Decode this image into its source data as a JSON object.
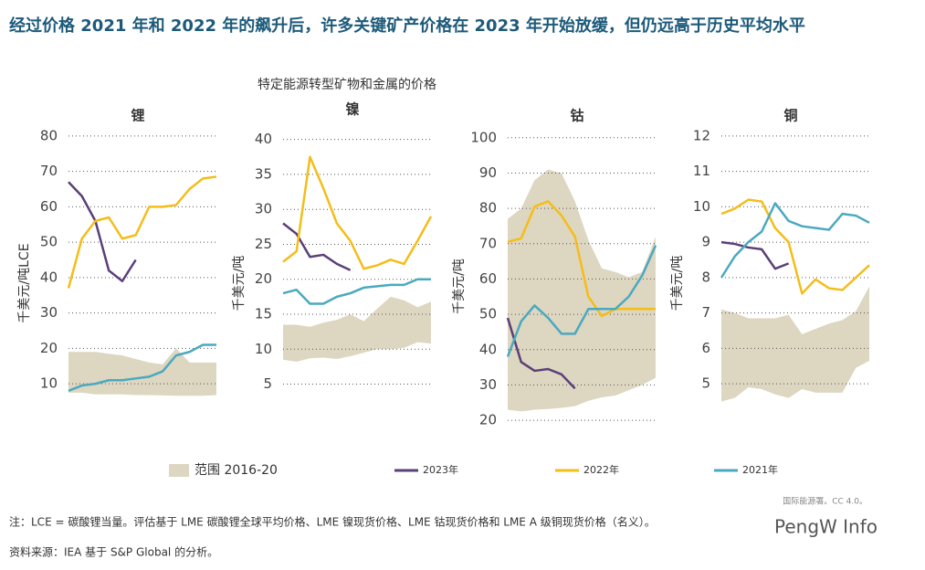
{
  "title": "经过价格 2021 年和 2022 年的飙升后，许多关键矿产价格在 2023 年开始放缓，但仍远高于历史平均水平",
  "subtitle": "特定能源转型矿物和金属的价格",
  "legend": [
    {
      "name": "范围 2016-20",
      "color": "#ddd6c1"
    },
    {
      "name": "2023年",
      "color": "#5b3f78"
    },
    {
      "name": "2022年",
      "color": "#f4bd1a"
    },
    {
      "name": "2021年",
      "color": "#4aa9bf"
    }
  ],
  "credit": "国际能源署。CC 4.0。",
  "note": "注：LCE = 碳酸锂当量。评估基于 LME 碳酸锂全球平均价格、LME 镍现货价格、LME 钴现货价格和 LME A 级铜现货价格（名义）。",
  "source": "资料来源：IEA 基于 S&P Global 的分析。",
  "watermark": "PengW Info",
  "chart_data": [
    {
      "type": "line",
      "title": "锂",
      "ylabel": "千美元/吨LCE",
      "categories": [
        null,
        null,
        null,
        null,
        null,
        null,
        null,
        null,
        null,
        null,
        null,
        null
      ],
      "ylim": [
        1,
        81
      ],
      "yticks": [
        10,
        20,
        30,
        40,
        50,
        60,
        70,
        80
      ],
      "grid": true,
      "range": {
        "low": [
          7.5,
          7.5,
          7,
          7,
          7,
          6.8,
          6.8,
          6.7,
          6.6,
          6.6,
          6.6,
          6.8
        ],
        "high": [
          19,
          19,
          19,
          18.5,
          18,
          17,
          16,
          15.5,
          20,
          16,
          16,
          16
        ]
      },
      "series": [
        {
          "values": [
            67,
            63,
            56,
            42,
            39,
            45,
            null,
            null,
            null,
            null,
            null,
            null
          ]
        },
        {
          "values": [
            37,
            51,
            56,
            57,
            51,
            52,
            60,
            60,
            60.5,
            65,
            68,
            68.5
          ]
        },
        {
          "values": [
            8,
            9.5,
            10,
            11,
            11,
            11.5,
            12,
            13.5,
            18,
            19,
            21,
            21
          ]
        }
      ]
    },
    {
      "type": "line",
      "title": "镍",
      "ylabel": "千美元/吨",
      "categories": [
        null,
        null,
        null,
        null,
        null,
        null,
        null,
        null,
        null,
        null,
        null,
        null
      ],
      "ylim": [
        0.5,
        41
      ],
      "yticks": [
        5,
        10,
        15,
        20,
        25,
        30,
        35,
        40
      ],
      "grid": true,
      "range": {
        "low": [
          8.5,
          8.2,
          8.7,
          8.8,
          8.6,
          9,
          9.5,
          10,
          10,
          10.2,
          11,
          10.8
        ],
        "high": [
          13.5,
          13.5,
          13.2,
          13.8,
          14.2,
          15,
          14,
          15.8,
          17.5,
          17,
          16,
          16.8
        ]
      },
      "series": [
        {
          "values": [
            28,
            26.5,
            23.2,
            23.5,
            22.2,
            21.3,
            null,
            null,
            null,
            null,
            null,
            null
          ]
        },
        {
          "values": [
            22.5,
            24,
            37.5,
            33,
            28,
            25.5,
            21.5,
            22,
            22.8,
            22.2,
            25.5,
            29
          ]
        },
        {
          "values": [
            18,
            18.5,
            16.5,
            16.5,
            17.5,
            18,
            18.8,
            19,
            19.2,
            19.2,
            20,
            20
          ]
        }
      ]
    },
    {
      "type": "line",
      "title": "钴",
      "ylabel": "千美元/吨",
      "categories": [
        null,
        null,
        null,
        null,
        null,
        null,
        null,
        null,
        null,
        null,
        null,
        null
      ],
      "ylim": [
        19.5,
        101.5
      ],
      "yticks": [
        20,
        30,
        40,
        50,
        60,
        70,
        80,
        90,
        100
      ],
      "grid": true,
      "range": {
        "low": [
          23,
          22.5,
          23,
          23.2,
          23.5,
          24,
          25.5,
          26.5,
          27,
          28.5,
          30,
          32
        ],
        "high": [
          77,
          80,
          88,
          91,
          90,
          82,
          71,
          63,
          62,
          60.5,
          62,
          72
        ]
      },
      "series": [
        {
          "values": [
            49,
            36.5,
            34,
            34.5,
            33,
            29,
            null,
            null,
            null,
            null,
            null,
            null
          ]
        },
        {
          "values": [
            70.5,
            71.5,
            80.5,
            82,
            78,
            72,
            55,
            49.5,
            51.5,
            51.5,
            51.5,
            51.5
          ]
        },
        {
          "values": [
            38,
            48,
            52.5,
            49,
            44.5,
            44.5,
            51.5,
            51.5,
            51.5,
            55,
            61,
            69.5
          ]
        }
      ]
    },
    {
      "type": "line",
      "title": "铜",
      "ylabel": "千美元/吨",
      "categories": [
        null,
        null,
        null,
        null,
        null,
        null,
        null,
        null,
        null,
        null,
        null,
        null
      ],
      "ylim": [
        4.1,
        12.1
      ],
      "yticks": [
        5,
        6,
        7,
        8,
        9,
        10,
        11,
        12
      ],
      "grid": true,
      "range": {
        "low": [
          4.5,
          4.6,
          4.9,
          4.85,
          4.7,
          4.6,
          4.85,
          4.75,
          4.75,
          4.75,
          5.45,
          5.65
        ],
        "high": [
          7.1,
          7,
          6.85,
          6.85,
          6.85,
          6.95,
          6.4,
          6.55,
          6.7,
          6.8,
          7.05,
          7.75
        ]
      },
      "series": [
        {
          "values": [
            9,
            8.95,
            8.85,
            8.8,
            8.25,
            8.4,
            null,
            null,
            null,
            null,
            null,
            null
          ]
        },
        {
          "values": [
            9.8,
            9.95,
            10.2,
            10.15,
            9.4,
            9,
            7.55,
            7.95,
            7.7,
            7.65,
            8,
            8.35
          ]
        },
        {
          "values": [
            8,
            8.6,
            9,
            9.3,
            10.1,
            9.6,
            9.45,
            9.4,
            9.35,
            9.8,
            9.75,
            9.55
          ]
        }
      ]
    }
  ]
}
